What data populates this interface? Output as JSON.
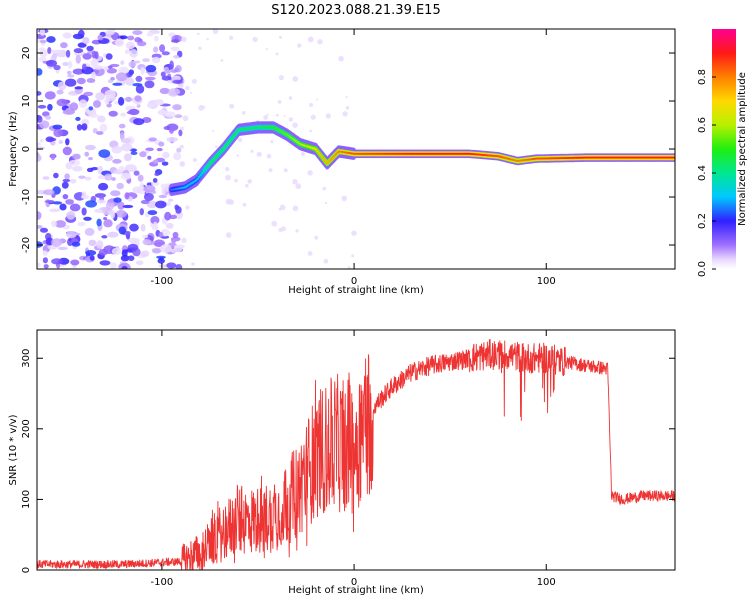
{
  "title": "S120.2023.088.21.39.E15",
  "chart_data": [
    {
      "type": "heatmap",
      "xlabel": "Height of straight line (km)",
      "ylabel": "Frequency (Hz)",
      "xlim": [
        -165,
        167
      ],
      "ylim": [
        -25,
        25
      ],
      "xticks": [
        -100,
        0,
        100
      ],
      "yticks": [
        -20,
        -10,
        0,
        10,
        20
      ],
      "colorbar": {
        "label": "Normalized spectral amplitude",
        "range": [
          0.0,
          1.0
        ],
        "ticks": [
          "0.0",
          "0.2",
          "0.4",
          "0.6",
          "0.8"
        ]
      },
      "ridge": [
        {
          "x": -95,
          "y": -8.5,
          "amp": 0.25
        },
        {
          "x": -88,
          "y": -8,
          "amp": 0.3
        },
        {
          "x": -82,
          "y": -6.5,
          "amp": 0.3
        },
        {
          "x": -75,
          "y": -3,
          "amp": 0.45
        },
        {
          "x": -68,
          "y": 0,
          "amp": 0.45
        },
        {
          "x": -60,
          "y": 4,
          "amp": 0.45
        },
        {
          "x": -50,
          "y": 4.5,
          "amp": 0.45
        },
        {
          "x": -42,
          "y": 4.5,
          "amp": 0.5
        },
        {
          "x": -35,
          "y": 3,
          "amp": 0.55
        },
        {
          "x": -28,
          "y": 1,
          "amp": 0.6
        },
        {
          "x": -20,
          "y": 0,
          "amp": 0.7
        },
        {
          "x": -14,
          "y": -3,
          "amp": 0.75
        },
        {
          "x": -8,
          "y": -0.5,
          "amp": 0.8
        },
        {
          "x": 0,
          "y": -1,
          "amp": 0.85
        },
        {
          "x": 30,
          "y": -1,
          "amp": 0.9
        },
        {
          "x": 60,
          "y": -1,
          "amp": 0.9
        },
        {
          "x": 75,
          "y": -1.5,
          "amp": 0.85
        },
        {
          "x": 85,
          "y": -2.5,
          "amp": 0.8
        },
        {
          "x": 95,
          "y": -2,
          "amp": 0.85
        },
        {
          "x": 120,
          "y": -1.8,
          "amp": 0.9
        },
        {
          "x": 167,
          "y": -1.8,
          "amp": 0.9
        }
      ]
    },
    {
      "type": "line",
      "xlabel": "Height of straight line (km)",
      "ylabel": "SNR (10 * v/v)",
      "xlim": [
        -165,
        167
      ],
      "ylim": [
        0,
        340
      ],
      "xticks": [
        -100,
        0,
        100
      ],
      "yticks": [
        0,
        100,
        200,
        300
      ],
      "series": [
        {
          "color": "#ee3333",
          "x": [
            -165,
            -120,
            -90,
            -80,
            -70,
            -60,
            -50,
            -40,
            -30,
            -20,
            -10,
            0,
            10,
            20,
            30,
            40,
            50,
            60,
            70,
            80,
            90,
            100,
            110,
            120,
            132,
            134,
            140,
            150,
            167
          ],
          "y": [
            8,
            8,
            12,
            25,
            50,
            70,
            70,
            80,
            110,
            160,
            180,
            175,
            230,
            260,
            280,
            290,
            295,
            300,
            305,
            305,
            300,
            300,
            295,
            290,
            285,
            105,
            100,
            105,
            105
          ]
        }
      ]
    }
  ]
}
